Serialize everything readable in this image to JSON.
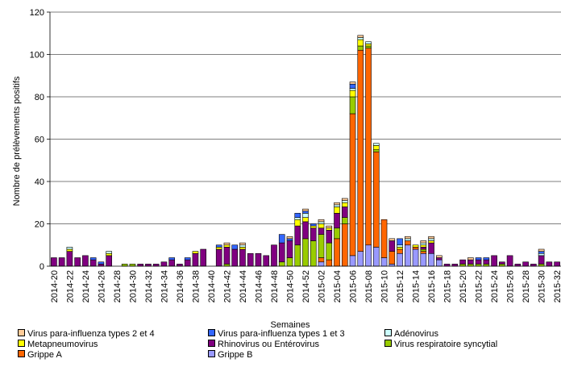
{
  "chart_data": {
    "type": "bar",
    "stacked": true,
    "title": "",
    "xlabel": "Semaines",
    "ylabel": "Nombre de prélèvements positifs",
    "ylim": [
      0,
      120
    ],
    "yticks": [
      0,
      20,
      40,
      60,
      80,
      100,
      120
    ],
    "grid": "horizontal",
    "legend_position": "bottom",
    "categories": [
      "2014-20",
      "2014-21",
      "2014-22",
      "2014-23",
      "2014-24",
      "2014-25",
      "2014-26",
      "2014-27",
      "2014-28",
      "2014-29",
      "2014-30",
      "2014-31",
      "2014-32",
      "2014-33",
      "2014-34",
      "2014-35",
      "2014-36",
      "2014-37",
      "2014-38",
      "2014-39",
      "2014-40",
      "2014-41",
      "2014-42",
      "2014-43",
      "2014-44",
      "2014-45",
      "2014-46",
      "2014-47",
      "2014-48",
      "2014-49",
      "2014-50",
      "2014-51",
      "2014-52",
      "2015-01",
      "2015-02",
      "2015-03",
      "2015-04",
      "2015-05",
      "2015-06",
      "2015-07",
      "2015-08",
      "2015-09",
      "2015-10",
      "2015-11",
      "2015-12",
      "2015-13",
      "2015-14",
      "2015-15",
      "2015-16",
      "2015-17",
      "2015-18",
      "2015-19",
      "2015-20",
      "2015-21",
      "2015-22",
      "2015-23",
      "2015-24",
      "2015-25",
      "2015-26",
      "2015-27",
      "2015-28",
      "2015-29",
      "2015-30",
      "2015-31",
      "2015-32"
    ],
    "tick_labels": [
      "2014-20",
      "2014-22",
      "2014-24",
      "2014-26",
      "2014-28",
      "2014-30",
      "2014-32",
      "2014-34",
      "2014-36",
      "2014-38",
      "2014-40",
      "2014-42",
      "2014-44",
      "2014-46",
      "2014-48",
      "2014-50",
      "2014-52",
      "2015-02",
      "2015-04",
      "2015-06",
      "2015-08",
      "2015-10",
      "2015-12",
      "2015-14",
      "2015-16",
      "2015-18",
      "2015-20",
      "2015-22",
      "2015-24",
      "2015-26",
      "2015-28",
      "2015-30",
      "2015-32"
    ],
    "series": [
      {
        "name": "Grippe B",
        "color": "#9999ff",
        "values": [
          0,
          0,
          0,
          0,
          0,
          0,
          0,
          0,
          0,
          0,
          0,
          0,
          0,
          0,
          0,
          0,
          0,
          0,
          0,
          0,
          0,
          0,
          0,
          0,
          0,
          0,
          0,
          0,
          0,
          0,
          0,
          0,
          0,
          0,
          2,
          0,
          0,
          0,
          5,
          7,
          10,
          9,
          4,
          1,
          6,
          10,
          8,
          6,
          6,
          3,
          0,
          0,
          0,
          0,
          0,
          0,
          0,
          0,
          0,
          0,
          0,
          0,
          0,
          0,
          0
        ]
      },
      {
        "name": "Grippe A",
        "color": "#ff6600",
        "values": [
          0,
          0,
          0,
          0,
          0,
          0,
          0,
          0,
          0,
          0,
          0,
          0,
          0,
          0,
          0,
          0,
          0,
          0,
          0,
          0,
          0,
          0,
          0,
          0,
          0,
          0,
          0,
          0,
          0,
          0,
          0,
          0,
          0,
          0,
          2,
          3,
          13,
          20,
          67,
          95,
          93,
          45,
          18,
          6,
          2,
          2,
          1,
          1,
          0,
          0,
          0,
          0,
          0,
          0,
          0,
          0,
          0,
          0,
          0,
          0,
          0,
          0,
          0,
          0,
          0
        ]
      },
      {
        "name": "Virus respiratoire syncytial",
        "color": "#99cc00",
        "values": [
          0,
          0,
          0,
          0,
          0,
          0,
          0,
          0,
          0,
          1,
          1,
          0,
          0,
          0,
          0,
          0,
          0,
          0,
          0,
          0,
          0,
          0,
          1,
          0,
          0,
          0,
          0,
          0,
          0,
          2,
          4,
          10,
          13,
          12,
          11,
          8,
          5,
          3,
          8,
          2,
          1,
          1,
          0,
          0,
          0,
          0,
          0,
          1,
          0,
          0,
          0,
          0,
          1,
          1,
          1,
          1,
          0,
          1,
          0,
          0,
          0,
          0,
          1,
          0,
          0
        ]
      },
      {
        "name": "Rhinovirus ou Entérovirus",
        "color": "#800080",
        "values": [
          4,
          4,
          7,
          4,
          5,
          3,
          1,
          5,
          0,
          0,
          0,
          1,
          1,
          1,
          2,
          3,
          1,
          3,
          6,
          8,
          0,
          8,
          8,
          8,
          8,
          6,
          6,
          5,
          10,
          9,
          8,
          9,
          8,
          6,
          3,
          6,
          7,
          5,
          0,
          0,
          0,
          0,
          0,
          5,
          0,
          0,
          0,
          1,
          5,
          1,
          1,
          1,
          2,
          2,
          2,
          2,
          5,
          1,
          5,
          1,
          2,
          1,
          4,
          2,
          2
        ]
      },
      {
        "name": "Metapneumovirus",
        "color": "#ffff00",
        "values": [
          0,
          0,
          1,
          0,
          0,
          0,
          0,
          1,
          0,
          0,
          0,
          0,
          0,
          0,
          0,
          0,
          0,
          0,
          1,
          0,
          0,
          1,
          1,
          0,
          1,
          0,
          0,
          0,
          0,
          0,
          0,
          3,
          2,
          1,
          2,
          1,
          3,
          2,
          3,
          3,
          1,
          2,
          0,
          0,
          1,
          0,
          1,
          1,
          1,
          0,
          0,
          0,
          0,
          0,
          0,
          0,
          0,
          0,
          0,
          0,
          0,
          0,
          0,
          0,
          0
        ]
      },
      {
        "name": "Adénovirus",
        "color": "#ccffff",
        "values": [
          0,
          0,
          1,
          0,
          0,
          0,
          0,
          1,
          0,
          0,
          0,
          0,
          0,
          0,
          0,
          0,
          0,
          0,
          0,
          0,
          0,
          0,
          0,
          0,
          1,
          0,
          0,
          0,
          0,
          0,
          0,
          1,
          2,
          0,
          1,
          0,
          1,
          1,
          1,
          1,
          1,
          1,
          0,
          0,
          1,
          1,
          0,
          1,
          1,
          0,
          0,
          0,
          0,
          0,
          0,
          0,
          0,
          0,
          0,
          0,
          0,
          0,
          1,
          0,
          0
        ]
      },
      {
        "name": "Virus para-influenza types 1 et 3",
        "color": "#3366ff",
        "values": [
          0,
          0,
          0,
          0,
          0,
          1,
          1,
          0,
          0,
          0,
          0,
          0,
          0,
          0,
          0,
          1,
          0,
          1,
          0,
          0,
          0,
          1,
          0,
          2,
          0,
          0,
          0,
          0,
          0,
          4,
          1,
          2,
          1,
          1,
          0,
          0,
          0,
          0,
          2,
          0,
          0,
          0,
          0,
          0,
          3,
          0,
          0,
          0,
          0,
          0,
          0,
          0,
          0,
          0,
          1,
          1,
          0,
          0,
          0,
          0,
          0,
          0,
          1,
          0,
          0
        ]
      },
      {
        "name": "Virus para-influenza types 2 et 4",
        "color": "#ffcc99",
        "values": [
          0,
          0,
          0,
          0,
          0,
          0,
          0,
          0,
          0,
          0,
          0,
          0,
          0,
          0,
          0,
          0,
          0,
          0,
          0,
          0,
          0,
          0,
          1,
          0,
          1,
          0,
          0,
          0,
          0,
          0,
          1,
          0,
          1,
          0,
          1,
          1,
          1,
          1,
          1,
          1,
          0,
          0,
          0,
          1,
          0,
          1,
          0,
          1,
          1,
          1,
          0,
          0,
          0,
          1,
          0,
          0,
          0,
          0,
          0,
          0,
          0,
          0,
          1,
          0,
          0
        ]
      }
    ],
    "legend": [
      {
        "name": "Virus para-influenza types 2 et 4",
        "color": "#ffcc99"
      },
      {
        "name": "Virus para-influenza types 1 et 3",
        "color": "#3366ff"
      },
      {
        "name": "Adénovirus",
        "color": "#ccffff"
      },
      {
        "name": "Metapneumovirus",
        "color": "#ffff00"
      },
      {
        "name": "Rhinovirus ou Entérovirus",
        "color": "#800080"
      },
      {
        "name": "Virus respiratoire syncytial",
        "color": "#99cc00"
      },
      {
        "name": "Grippe A",
        "color": "#ff6600"
      },
      {
        "name": "Grippe B",
        "color": "#9999ff"
      }
    ]
  }
}
